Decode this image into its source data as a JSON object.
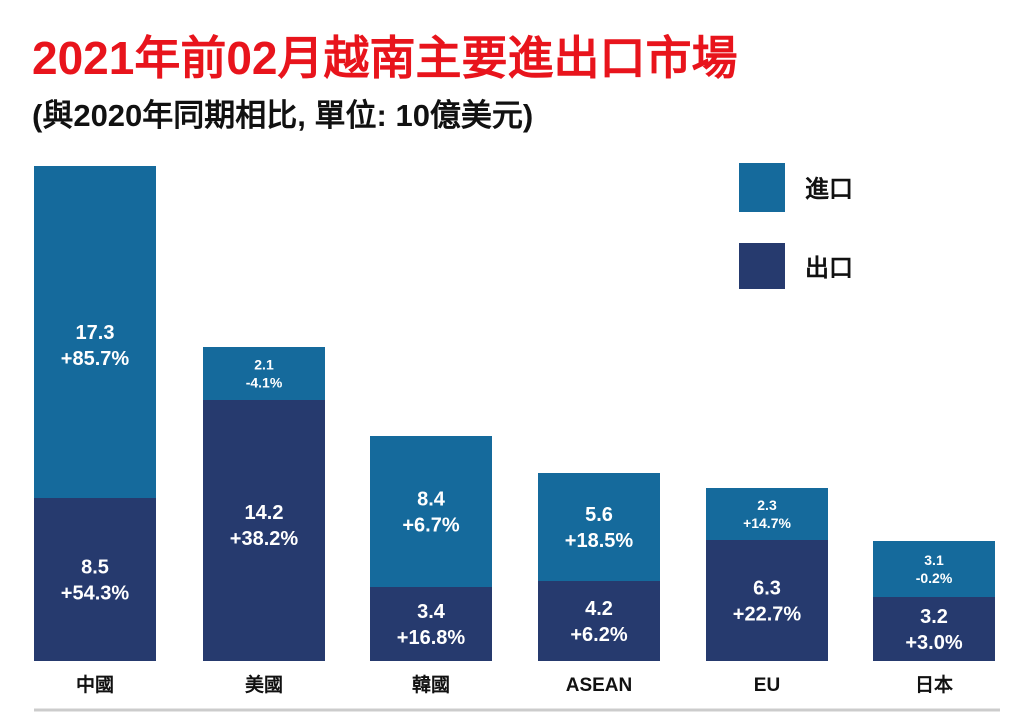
{
  "chart_data": {
    "type": "bar",
    "stacked": true,
    "title": "2021年前02月越南主要進出口市場",
    "subtitle": "(與2020年同期相比, 單位: 10億美元)",
    "categories": [
      "中國",
      "美國",
      "韓國",
      "ASEAN",
      "EU",
      "日本"
    ],
    "series": [
      {
        "name": "出口",
        "color": "#263a6e",
        "values": [
          8.5,
          14.2,
          3.4,
          4.2,
          6.3,
          3.2
        ],
        "growth": [
          "+54.3%",
          "+38.2%",
          "+16.8%",
          "+6.2%",
          "+22.7%",
          "+3.0%"
        ]
      },
      {
        "name": "進口",
        "color": "#156a9c",
        "values": [
          17.3,
          2.1,
          8.4,
          5.6,
          2.3,
          3.1
        ],
        "growth": [
          "+85.7%",
          "-4.1%",
          "+6.7%",
          "+18.5%",
          "+14.7%",
          "-0.2%"
        ]
      }
    ],
    "legend_position": "top-right",
    "grid": false
  }
}
